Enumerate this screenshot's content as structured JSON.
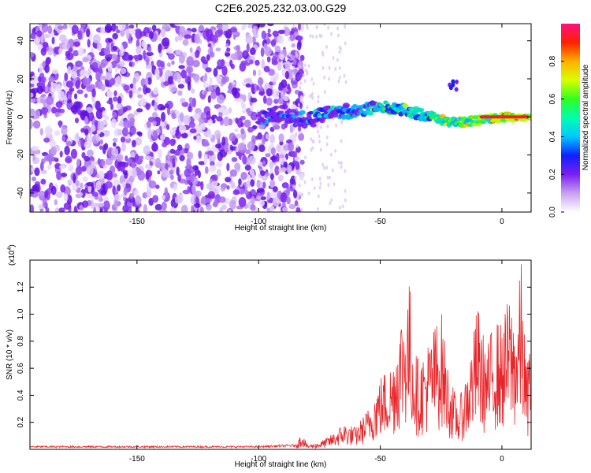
{
  "title": "C2E6.2025.232.03.00.G29",
  "chart_data": [
    {
      "type": "heatmap",
      "name": "spectrogram",
      "xlabel": "Height of straight line (km)",
      "ylabel": "Frequency (Hz)",
      "xlim": [
        -194,
        12
      ],
      "ylim": [
        -50,
        49
      ],
      "xticks": [
        -150,
        -100,
        -50,
        0
      ],
      "yticks": [
        -40,
        -20,
        0,
        20,
        40
      ],
      "colorbar": {
        "label": "Normalized spectral amplitude",
        "range": [
          0,
          1
        ],
        "ticks": [
          0.0,
          0.2,
          0.4,
          0.6,
          0.8
        ]
      },
      "features": [
        {
          "description": "signal trace",
          "x": [
            -100,
            -90,
            -80,
            -70,
            -60,
            -50,
            -40,
            -30,
            -20,
            -10,
            0,
            10
          ],
          "y": [
            0,
            2,
            -2,
            3,
            3,
            5,
            4,
            0,
            -3,
            -2,
            0,
            0
          ]
        }
      ]
    },
    {
      "type": "line",
      "name": "snr",
      "xlabel": "Height of straight line (km)",
      "ylabel": "SNR (10 * v/v)",
      "y_multiplier": "(x10",
      "y_multiplier_exp": "4",
      "y_multiplier_close": ")",
      "xlim": [
        -194,
        12
      ],
      "ylim": [
        0,
        1.4
      ],
      "xticks": [
        -150,
        -100,
        -50,
        0
      ],
      "yticks": [
        0.2,
        0.4,
        0.6,
        0.8,
        1.0,
        1.2
      ],
      "series": [
        {
          "name": "SNR",
          "color": "#e8262a",
          "x": [
            -194,
            -100,
            -85,
            -82,
            -80,
            -75,
            -70,
            -65,
            -60,
            -55,
            -50,
            -45,
            -42,
            -38,
            -36,
            -34,
            -30,
            -25,
            -22,
            -18,
            -15,
            -12,
            -10,
            -8,
            -6,
            -3,
            0,
            3,
            6,
            8,
            10,
            12
          ],
          "y": [
            0.02,
            0.02,
            0.03,
            0.12,
            0.03,
            0.05,
            0.1,
            0.18,
            0.15,
            0.28,
            0.5,
            0.6,
            0.9,
            1.15,
            0.7,
            0.6,
            0.75,
            0.95,
            0.55,
            0.3,
            0.5,
            0.75,
            1.0,
            0.8,
            0.7,
            0.9,
            0.85,
            1.05,
            0.9,
            1.3,
            0.55,
            0.85
          ]
        }
      ]
    }
  ]
}
